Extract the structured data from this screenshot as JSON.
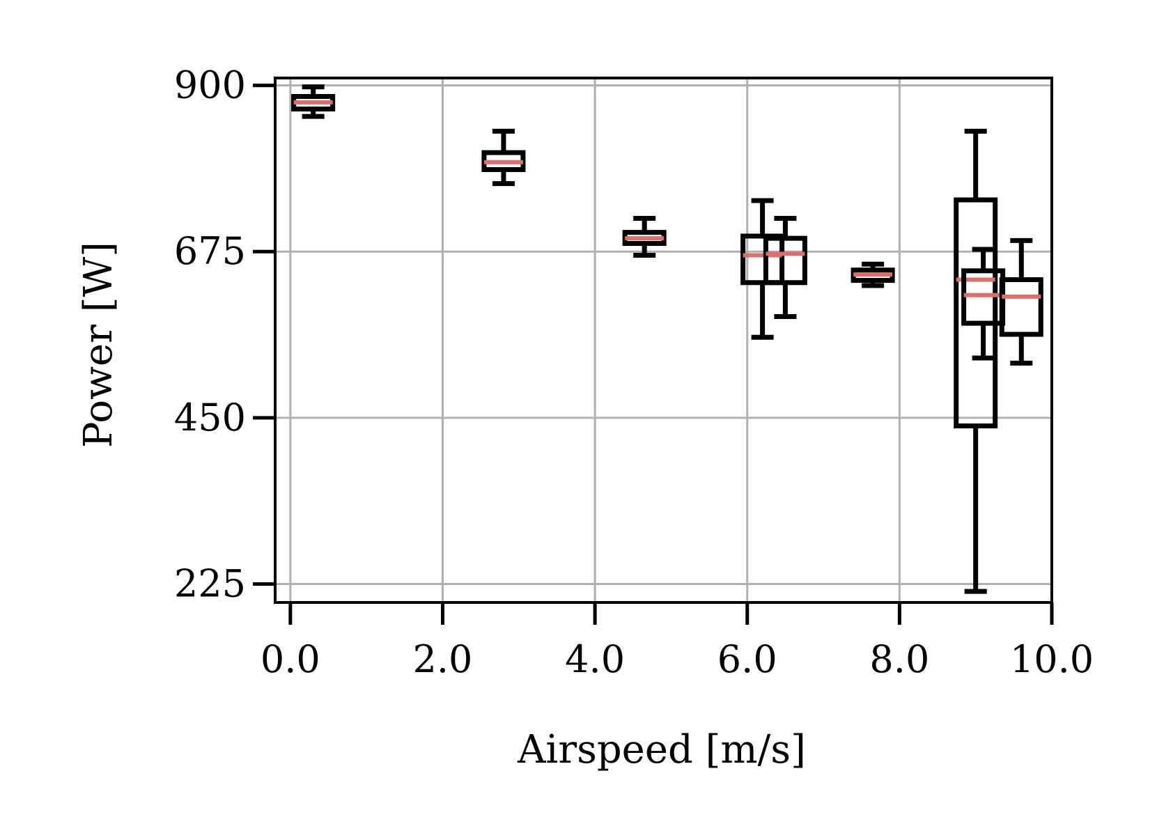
{
  "chart_data": {
    "type": "box",
    "xlabel": "Airspeed [m/s]",
    "ylabel": "Power [W]",
    "xlim": [
      -0.2,
      10.0
    ],
    "ylim": [
      200,
      910
    ],
    "x_ticks": [
      0,
      2,
      4,
      6,
      8,
      10
    ],
    "x_tick_labels": [
      "0.0",
      "2.0",
      "4.0",
      "6.0",
      "8.0",
      "10.0"
    ],
    "y_ticks": [
      225,
      450,
      675,
      900
    ],
    "y_tick_labels": [
      "225",
      "450",
      "675",
      "900"
    ],
    "grid": true,
    "colors": {
      "box": "#000000",
      "median": "#d9706e",
      "grid": "#b0b0b0"
    },
    "boxes": [
      {
        "x": 0.3,
        "whisker_low": 858,
        "q1": 868,
        "median": 877,
        "q3": 885,
        "whisker_high": 898
      },
      {
        "x": 2.8,
        "whisker_low": 767,
        "q1": 786,
        "median": 796,
        "q3": 809,
        "whisker_high": 838
      },
      {
        "x": 4.65,
        "whisker_low": 670,
        "q1": 686,
        "median": 693,
        "q3": 701,
        "whisker_high": 720
      },
      {
        "x": 6.2,
        "whisker_low": 559,
        "q1": 633,
        "median": 670,
        "q3": 696,
        "whisker_high": 744
      },
      {
        "x": 6.5,
        "whisker_low": 587,
        "q1": 633,
        "median": 672,
        "q3": 693,
        "whisker_high": 720
      },
      {
        "x": 7.65,
        "whisker_low": 629,
        "q1": 636,
        "median": 644,
        "q3": 650,
        "whisker_high": 658
      },
      {
        "x": 9.0,
        "whisker_low": 215,
        "q1": 439,
        "median": 637,
        "q3": 745,
        "whisker_high": 838
      },
      {
        "x": 9.1,
        "whisker_low": 531,
        "q1": 578,
        "median": 616,
        "q3": 649,
        "whisker_high": 678
      },
      {
        "x": 9.6,
        "whisker_low": 524,
        "q1": 563,
        "median": 614,
        "q3": 637,
        "whisker_high": 690
      }
    ]
  }
}
